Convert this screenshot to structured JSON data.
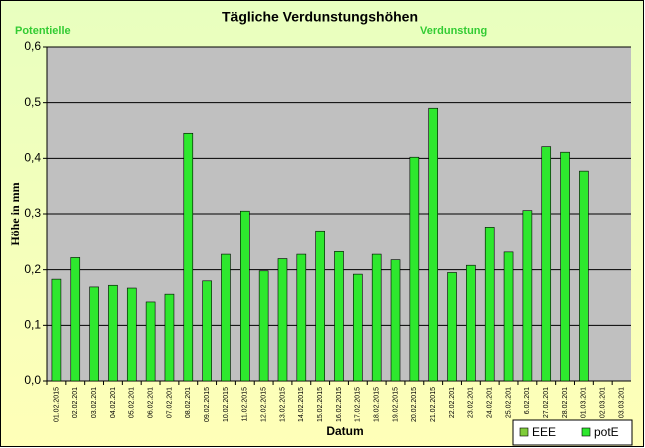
{
  "chart_data": {
    "type": "bar",
    "title": "Tägliche Verdunstungshöhen",
    "annotations": [
      "Potentielle",
      "Verdunstung"
    ],
    "x_label": "Datum",
    "y_label": "Höhe in mm",
    "categories": [
      "01.02.2015",
      "02.02.201",
      "03.02.201",
      "04.02.201",
      "05.02.201",
      "06.02.201",
      "07.02.201",
      "08.02.201",
      "09.02.2015",
      "10.02.2015",
      "11.02.2015",
      "12.02.2015",
      "13.02.2015",
      "14.02.2015",
      "15.02.2015",
      "16.02.2015",
      "17.02.2015",
      "18.02.2015",
      "19.02.2015",
      "20.02.2015",
      "21.02.2015",
      "22.02.201",
      "23.02.201",
      "24.02.201",
      "25.02.201",
      "6.02.201",
      "27.02.201",
      "28.02.201",
      "01.03.201",
      "02.03.201",
      "03.03.201"
    ],
    "series": [
      {
        "name": "EEE",
        "color": "#7fcc3a",
        "values": [
          null,
          null,
          null,
          null,
          null,
          null,
          null,
          null,
          null,
          null,
          null,
          null,
          null,
          null,
          null,
          null,
          null,
          null,
          null,
          null,
          null,
          null,
          null,
          null,
          null,
          null,
          null,
          null,
          null,
          null,
          null
        ]
      },
      {
        "name": "potE",
        "color": "#2ee82e",
        "values": [
          0.183,
          0.222,
          0.169,
          0.172,
          0.167,
          0.142,
          0.156,
          0.445,
          0.18,
          0.228,
          0.305,
          0.198,
          0.22,
          0.228,
          0.269,
          0.233,
          0.192,
          0.228,
          0.218,
          0.402,
          0.49,
          0.195,
          0.208,
          0.276,
          0.232,
          0.306,
          0.421,
          0.411,
          0.377,
          null,
          null
        ]
      }
    ],
    "ylim": [
      0,
      0.6
    ],
    "yticks": [
      {
        "value": 0,
        "label": "0,0"
      },
      {
        "value": 0.1,
        "label": "0,1"
      },
      {
        "value": 0.2,
        "label": "0,2"
      },
      {
        "value": 0.3,
        "label": "0,3"
      },
      {
        "value": 0.4,
        "label": "0,4"
      },
      {
        "value": 0.5,
        "label": "0,5"
      },
      {
        "value": 0.6,
        "label": "0,6"
      }
    ],
    "grid": true,
    "legend": "bottom-right"
  }
}
